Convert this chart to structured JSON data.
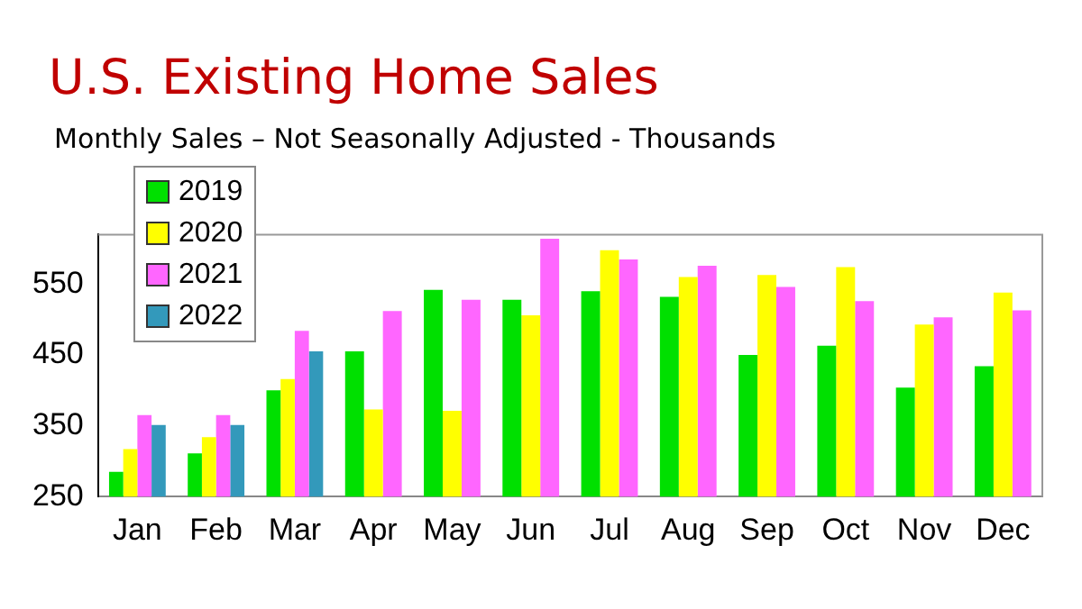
{
  "chart_data": {
    "type": "bar",
    "title": "U.S. Existing Home Sales",
    "subtitle": "Monthly Sales – Not Seasonally Adjusted - Thousands",
    "categories": [
      "Jan",
      "Feb",
      "Mar",
      "Apr",
      "May",
      "Jun",
      "Jul",
      "Aug",
      "Sep",
      "Oct",
      "Nov",
      "Dec"
    ],
    "series": [
      {
        "name": "2019",
        "color": "#00e000",
        "values": [
          285,
          311,
          400,
          455,
          542,
          528,
          540,
          532,
          450,
          463,
          404,
          434
        ]
      },
      {
        "name": "2020",
        "color": "#ffff00",
        "values": [
          317,
          334,
          416,
          373,
          371,
          506,
          598,
          560,
          563,
          574,
          493,
          538
        ]
      },
      {
        "name": "2021",
        "color": "#ff66ff",
        "values": [
          365,
          365,
          484,
          512,
          528,
          614,
          585,
          576,
          546,
          526,
          503,
          513
        ]
      },
      {
        "name": "2022",
        "color": "#3399bb",
        "values": [
          351,
          351,
          455,
          null,
          null,
          null,
          null,
          null,
          null,
          null,
          null,
          null
        ]
      }
    ],
    "ylim": [
      250,
      620
    ],
    "yticks": [
      250,
      350,
      450,
      550
    ],
    "grid": false,
    "legend": "top left"
  }
}
